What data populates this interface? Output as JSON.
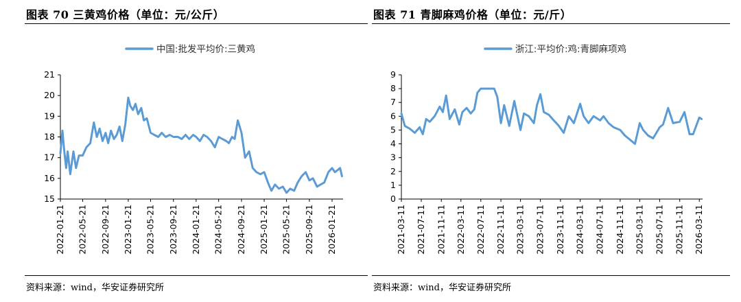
{
  "charts": [
    {
      "title": "图表 70 三黄鸡价格（单位：元/公斤）",
      "source": "资料来源：wind，华安证券研究所"
    },
    {
      "title": "图表 71 青脚麻鸡价格（单位：元/斤）",
      "source": "资料来源：wind，华安证券研究所"
    }
  ],
  "chart_data": [
    {
      "type": "line",
      "title": "图表 70 三黄鸡价格（单位：元/公斤）",
      "legend": "top-center",
      "grid": false,
      "color": "#5b9bd5",
      "ylim": [
        15,
        21
      ],
      "yticks": [
        15,
        16,
        17,
        18,
        19,
        20,
        21
      ],
      "xlim": [
        "2022-01-21",
        "2026-03-21"
      ],
      "xticks": [
        "2022-01-21",
        "2022-05-21",
        "2022-09-21",
        "2023-01-21",
        "2023-05-21",
        "2023-09-21",
        "2024-01-21",
        "2024-05-21",
        "2024-09-21",
        "2025-01-21",
        "2025-05-21",
        "2025-09-21",
        "2026-01-21"
      ],
      "series": [
        {
          "name": "中国:批发平均价:三黄鸡",
          "x": [
            "2022-01-21",
            "2022-02-01",
            "2022-02-10",
            "2022-02-21",
            "2022-03-01",
            "2022-03-15",
            "2022-04-01",
            "2022-04-15",
            "2022-05-01",
            "2022-05-21",
            "2022-06-10",
            "2022-07-01",
            "2022-07-20",
            "2022-08-05",
            "2022-08-20",
            "2022-09-05",
            "2022-09-21",
            "2022-10-05",
            "2022-10-20",
            "2022-11-05",
            "2022-11-20",
            "2022-12-05",
            "2022-12-20",
            "2023-01-05",
            "2023-01-21",
            "2023-02-01",
            "2023-02-15",
            "2023-03-01",
            "2023-03-15",
            "2023-04-01",
            "2023-04-15",
            "2023-05-01",
            "2023-05-21",
            "2023-06-10",
            "2023-07-01",
            "2023-07-20",
            "2023-08-10",
            "2023-09-01",
            "2023-09-21",
            "2023-10-15",
            "2023-11-05",
            "2023-11-25",
            "2023-12-15",
            "2024-01-05",
            "2024-01-21",
            "2024-02-10",
            "2024-03-01",
            "2024-03-20",
            "2024-04-10",
            "2024-05-01",
            "2024-05-21",
            "2024-06-10",
            "2024-07-01",
            "2024-07-15",
            "2024-08-01",
            "2024-08-15",
            "2024-09-01",
            "2024-09-21",
            "2024-10-10",
            "2024-11-01",
            "2024-11-20",
            "2024-12-10",
            "2025-01-01",
            "2025-01-21",
            "2025-02-10",
            "2025-03-01",
            "2025-03-20",
            "2025-04-10",
            "2025-05-01",
            "2025-05-21",
            "2025-06-10",
            "2025-07-01",
            "2025-07-20",
            "2025-08-10",
            "2025-09-01",
            "2025-09-21",
            "2025-10-10",
            "2025-11-01",
            "2025-11-20",
            "2025-12-10",
            "2026-01-01",
            "2026-01-21",
            "2026-02-05",
            "2026-02-20",
            "2026-03-05",
            "2026-03-15"
          ],
          "values": [
            17.2,
            18.3,
            17.4,
            16.5,
            17.3,
            16.2,
            17.3,
            16.5,
            17.1,
            17.1,
            17.5,
            17.7,
            18.7,
            18.0,
            18.4,
            17.8,
            18.2,
            17.7,
            18.3,
            17.9,
            18.1,
            18.5,
            17.8,
            18.6,
            19.9,
            19.5,
            19.3,
            19.6,
            19.1,
            19.4,
            18.8,
            18.9,
            18.2,
            18.1,
            18.0,
            18.2,
            18.0,
            18.1,
            18.0,
            18.0,
            17.9,
            18.1,
            17.9,
            18.1,
            18.0,
            17.8,
            18.1,
            18.0,
            17.8,
            17.5,
            18.0,
            17.9,
            17.8,
            17.7,
            18.0,
            17.9,
            18.8,
            18.2,
            17.0,
            17.3,
            16.5,
            16.3,
            16.2,
            16.3,
            15.8,
            15.4,
            15.7,
            15.5,
            15.6,
            15.3,
            15.5,
            15.4,
            15.8,
            16.1,
            16.3,
            15.9,
            16.0,
            15.6,
            15.7,
            15.8,
            16.3,
            16.5,
            16.3,
            16.4,
            16.5,
            16.1
          ]
        }
      ]
    },
    {
      "type": "line",
      "title": "图表 71 青脚麻鸡价格（单位：元/斤）",
      "legend": "top-center",
      "grid": false,
      "color": "#5b9bd5",
      "ylim": [
        0,
        9
      ],
      "yticks": [
        0,
        1,
        2,
        3,
        4,
        5,
        6,
        7,
        8,
        9
      ],
      "xlim": [
        "2021-03-11",
        "2026-03-31"
      ],
      "xticks": [
        "2021-03-11",
        "2021-07-11",
        "2021-11-11",
        "2022-03-11",
        "2022-07-11",
        "2022-11-11",
        "2023-03-11",
        "2023-07-11",
        "2023-11-11",
        "2024-03-11",
        "2024-07-11",
        "2024-11-11",
        "2025-03-11",
        "2025-07-11",
        "2025-11-11",
        "2026-03-11"
      ],
      "series": [
        {
          "name": "浙江:平均价:鸡:青脚麻项鸡",
          "x": [
            "2021-03-11",
            "2021-04-01",
            "2021-05-01",
            "2021-06-01",
            "2021-07-01",
            "2021-07-20",
            "2021-08-10",
            "2021-09-01",
            "2021-10-01",
            "2021-11-01",
            "2021-11-20",
            "2021-12-10",
            "2022-01-01",
            "2022-02-01",
            "2022-03-01",
            "2022-03-20",
            "2022-04-15",
            "2022-05-10",
            "2022-06-01",
            "2022-06-20",
            "2022-07-11",
            "2022-08-01",
            "2022-09-01",
            "2022-10-01",
            "2022-10-20",
            "2022-11-11",
            "2022-12-01",
            "2023-01-01",
            "2023-02-01",
            "2023-03-11",
            "2023-04-01",
            "2023-05-01",
            "2023-06-01",
            "2023-06-20",
            "2023-07-11",
            "2023-08-01",
            "2023-09-01",
            "2023-10-01",
            "2023-11-01",
            "2023-12-01",
            "2024-01-01",
            "2024-02-01",
            "2024-03-11",
            "2024-04-01",
            "2024-05-01",
            "2024-06-01",
            "2024-07-11",
            "2024-08-01",
            "2024-09-01",
            "2024-10-01",
            "2024-11-11",
            "2024-12-10",
            "2025-01-10",
            "2025-02-10",
            "2025-03-11",
            "2025-04-01",
            "2025-05-01",
            "2025-06-01",
            "2025-07-11",
            "2025-08-01",
            "2025-09-01",
            "2025-10-01",
            "2025-11-11",
            "2025-12-10",
            "2026-01-10",
            "2026-02-01",
            "2026-02-20",
            "2026-03-11",
            "2026-03-25"
          ],
          "values": [
            6.2,
            5.3,
            5.1,
            4.8,
            5.2,
            4.7,
            5.8,
            5.6,
            6.0,
            6.7,
            6.3,
            7.5,
            5.8,
            6.5,
            5.4,
            6.3,
            6.6,
            6.2,
            6.5,
            7.7,
            8.0,
            8.0,
            8.0,
            8.0,
            7.4,
            5.5,
            6.8,
            5.3,
            7.1,
            5.0,
            6.2,
            6.0,
            5.5,
            6.8,
            7.6,
            6.3,
            6.1,
            5.7,
            5.3,
            4.8,
            6.0,
            5.5,
            6.9,
            6.0,
            5.5,
            6.0,
            5.7,
            6.0,
            5.5,
            5.2,
            5.0,
            4.6,
            4.3,
            4.0,
            5.5,
            5.0,
            4.6,
            4.4,
            5.2,
            5.4,
            6.6,
            5.5,
            5.6,
            6.3,
            4.7,
            4.7,
            5.3,
            5.9,
            5.8
          ]
        }
      ]
    }
  ]
}
